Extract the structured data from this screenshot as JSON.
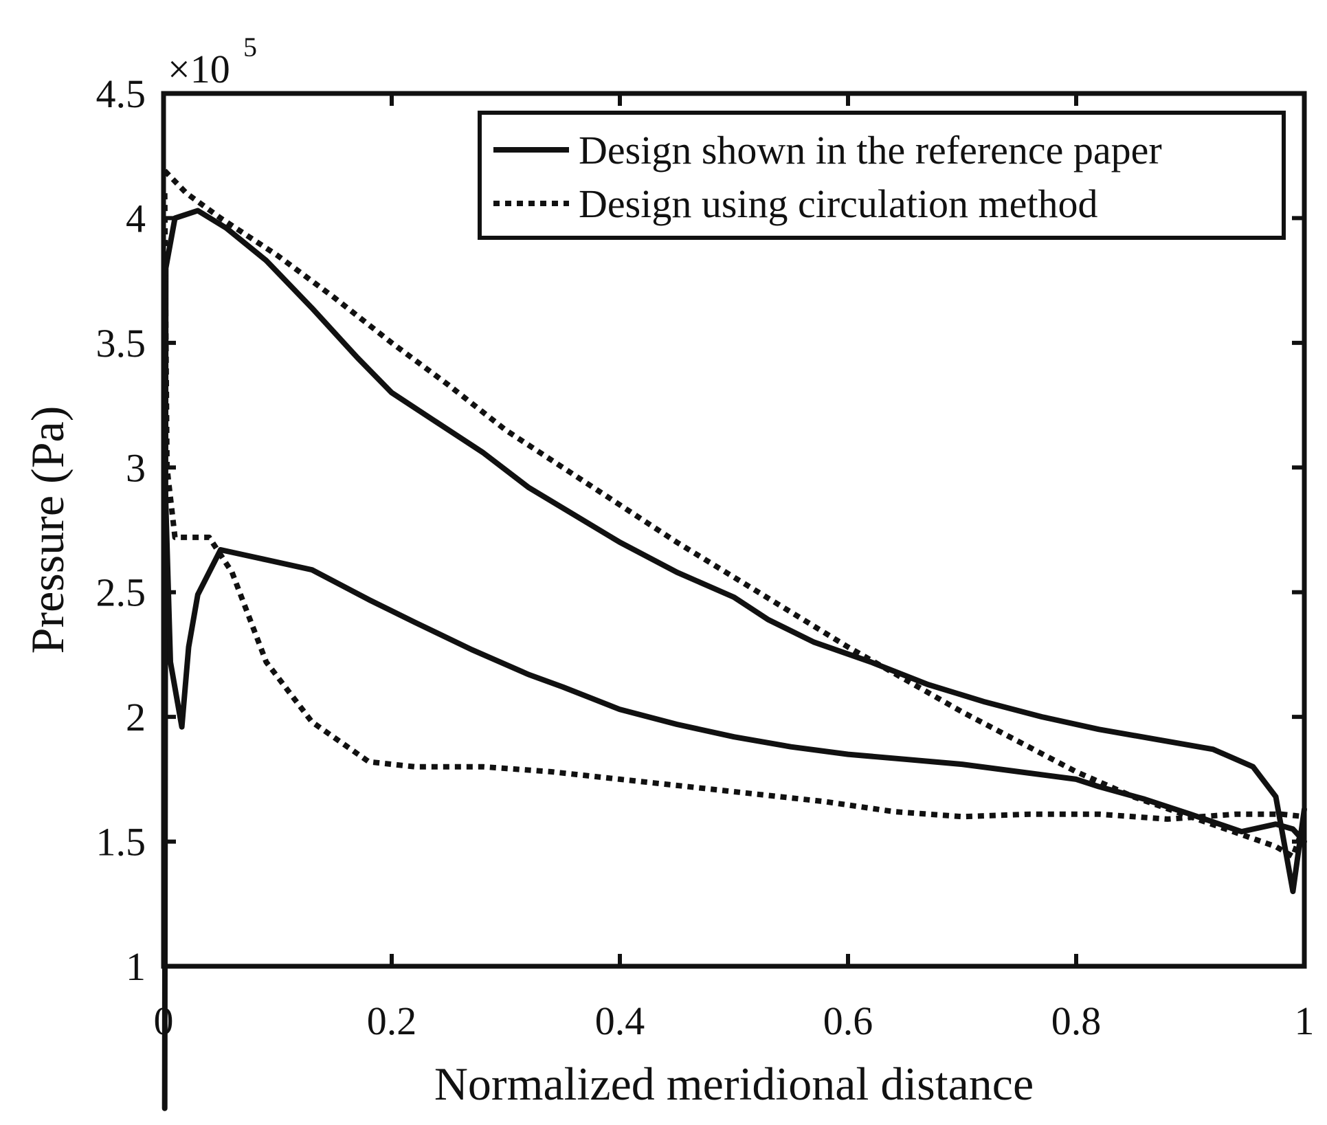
{
  "chart_data": {
    "type": "line",
    "title": "",
    "xlabel": "Normalized meridional distance",
    "ylabel": "Pressure (Pa)",
    "xlim": [
      0,
      1
    ],
    "ylim": [
      100000,
      450000
    ],
    "y_multiplier": {
      "base": "×10",
      "exponent": "5"
    },
    "grid": false,
    "x_ticks": [
      {
        "value": 0,
        "label": "0"
      },
      {
        "value": 0.2,
        "label": "0.2"
      },
      {
        "value": 0.4,
        "label": "0.4"
      },
      {
        "value": 0.6,
        "label": "0.6"
      },
      {
        "value": 0.8,
        "label": "0.8"
      },
      {
        "value": 1,
        "label": "1"
      }
    ],
    "y_ticks": [
      {
        "value": 100000,
        "label": "1"
      },
      {
        "value": 150000,
        "label": "1.5"
      },
      {
        "value": 200000,
        "label": "2"
      },
      {
        "value": 250000,
        "label": "2.5"
      },
      {
        "value": 300000,
        "label": "3"
      },
      {
        "value": 350000,
        "label": "3.5"
      },
      {
        "value": 400000,
        "label": "4"
      },
      {
        "value": 450000,
        "label": "4.5"
      }
    ],
    "legend_position": "top-right",
    "series": [
      {
        "name": "Design shown in the reference paper",
        "style": "solid",
        "color": "#111111",
        "curves": [
          {
            "id": "upper",
            "points": [
              [
                0.001,
                43000
              ],
              [
                0.002,
                380000
              ],
              [
                0.01,
                400000
              ],
              [
                0.03,
                403000
              ],
              [
                0.055,
                396000
              ],
              [
                0.09,
                383000
              ],
              [
                0.13,
                364000
              ],
              [
                0.17,
                344000
              ],
              [
                0.2,
                330000
              ],
              [
                0.24,
                318000
              ],
              [
                0.28,
                306000
              ],
              [
                0.32,
                292000
              ],
              [
                0.36,
                281000
              ],
              [
                0.4,
                270000
              ],
              [
                0.45,
                258000
              ],
              [
                0.5,
                248000
              ],
              [
                0.53,
                239000
              ],
              [
                0.57,
                230000
              ],
              [
                0.62,
                222000
              ],
              [
                0.67,
                213000
              ],
              [
                0.72,
                206000
              ],
              [
                0.77,
                200000
              ],
              [
                0.82,
                195000
              ],
              [
                0.87,
                191000
              ],
              [
                0.92,
                187000
              ],
              [
                0.955,
                180000
              ],
              [
                0.975,
                168000
              ],
              [
                0.99,
                130000
              ],
              [
                1.0,
                163000
              ]
            ]
          },
          {
            "id": "lower",
            "points": [
              [
                0.001,
                300000
              ],
              [
                0.006,
                222000
              ],
              [
                0.016,
                196000
              ],
              [
                0.022,
                228000
              ],
              [
                0.03,
                249000
              ],
              [
                0.05,
                267000
              ],
              [
                0.09,
                263000
              ],
              [
                0.13,
                259000
              ],
              [
                0.18,
                247000
              ],
              [
                0.22,
                238000
              ],
              [
                0.27,
                227000
              ],
              [
                0.32,
                217000
              ],
              [
                0.35,
                212000
              ],
              [
                0.4,
                203000
              ],
              [
                0.45,
                197000
              ],
              [
                0.5,
                192000
              ],
              [
                0.55,
                188000
              ],
              [
                0.6,
                185000
              ],
              [
                0.65,
                183000
              ],
              [
                0.7,
                181000
              ],
              [
                0.75,
                178000
              ],
              [
                0.8,
                175000
              ],
              [
                0.82,
                172000
              ],
              [
                0.86,
                167000
              ],
              [
                0.9,
                161000
              ],
              [
                0.945,
                154000
              ],
              [
                0.975,
                157000
              ],
              [
                0.99,
                155000
              ],
              [
                1.0,
                150000
              ]
            ]
          }
        ]
      },
      {
        "name": "Design using circulation method",
        "style": "dotted",
        "color": "#111111",
        "curves": [
          {
            "id": "upper",
            "points": [
              [
                0.001,
                419000
              ],
              [
                0.02,
                410000
              ],
              [
                0.05,
                400000
              ],
              [
                0.1,
                385000
              ],
              [
                0.15,
                368000
              ],
              [
                0.2,
                350000
              ],
              [
                0.25,
                333000
              ],
              [
                0.3,
                315000
              ],
              [
                0.35,
                300000
              ],
              [
                0.4,
                285000
              ],
              [
                0.45,
                270000
              ],
              [
                0.5,
                256000
              ],
              [
                0.55,
                242000
              ],
              [
                0.6,
                228000
              ],
              [
                0.65,
                215000
              ],
              [
                0.7,
                202000
              ],
              [
                0.75,
                190000
              ],
              [
                0.8,
                178000
              ],
              [
                0.85,
                168000
              ],
              [
                0.9,
                160000
              ],
              [
                0.95,
                152000
              ],
              [
                0.975,
                148000
              ],
              [
                0.99,
                144000
              ],
              [
                1.0,
                157000
              ]
            ]
          },
          {
            "id": "lower",
            "points": [
              [
                0.001,
                410000
              ],
              [
                0.003,
                300000
              ],
              [
                0.01,
                272000
              ],
              [
                0.04,
                272000
              ],
              [
                0.06,
                258000
              ],
              [
                0.09,
                222000
              ],
              [
                0.13,
                198000
              ],
              [
                0.18,
                182000
              ],
              [
                0.22,
                180000
              ],
              [
                0.28,
                180000
              ],
              [
                0.34,
                178000
              ],
              [
                0.4,
                175000
              ],
              [
                0.46,
                172000
              ],
              [
                0.52,
                169000
              ],
              [
                0.58,
                166000
              ],
              [
                0.64,
                162000
              ],
              [
                0.7,
                160000
              ],
              [
                0.76,
                161000
              ],
              [
                0.82,
                161000
              ],
              [
                0.88,
                159000
              ],
              [
                0.94,
                161000
              ],
              [
                0.98,
                161000
              ],
              [
                1.0,
                160000
              ]
            ]
          }
        ]
      }
    ]
  }
}
